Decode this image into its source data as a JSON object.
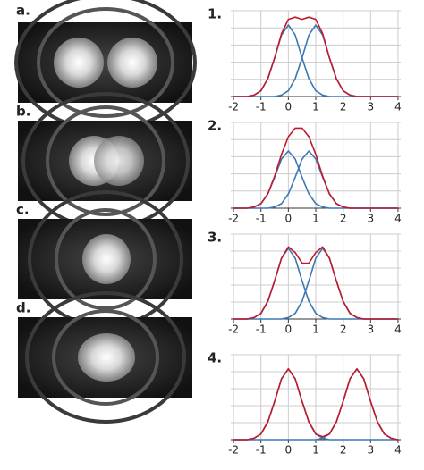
{
  "panels": [
    {
      "label": "a."
    },
    {
      "label": "b."
    },
    {
      "label": "c."
    },
    {
      "label": "d."
    }
  ],
  "chart_data": [
    {
      "type": "line",
      "title": "1.",
      "x": [
        -2,
        -1.75,
        -1.5,
        -1.25,
        -1,
        -0.75,
        -0.5,
        -0.25,
        0,
        0.25,
        0.5,
        0.75,
        1,
        1.25,
        1.5,
        1.75,
        2,
        2.25,
        2.5,
        2.75,
        3,
        3.25,
        3.5,
        3.75,
        4
      ],
      "xlim": [
        -2.1,
        4.1
      ],
      "xticks": [
        -2,
        -1,
        0,
        1,
        2,
        3,
        4
      ],
      "ylim": [
        0,
        1.2
      ],
      "yticks": [
        0,
        0.24,
        0.48,
        0.72,
        0.96,
        1.2
      ],
      "grid": true,
      "series": [
        {
          "color": "#3b78b5",
          "values": [
            0,
            0,
            0,
            0.02,
            0.08,
            0.25,
            0.54,
            0.86,
            1,
            0.86,
            0.54,
            0.25,
            0.08,
            0.02,
            0,
            0,
            0,
            0,
            0,
            0,
            0,
            0,
            0,
            0,
            0
          ]
        },
        {
          "color": "#3b78b5",
          "values": [
            0,
            0,
            0,
            0,
            0,
            0,
            0,
            0.02,
            0.08,
            0.25,
            0.54,
            0.86,
            1,
            0.86,
            0.54,
            0.25,
            0.08,
            0.02,
            0,
            0,
            0,
            0,
            0,
            0,
            0
          ]
        },
        {
          "color": "#c01a2c",
          "values": [
            0,
            0,
            0,
            0.02,
            0.08,
            0.25,
            0.54,
            0.88,
            1.08,
            1.11,
            1.08,
            1.11,
            1.08,
            0.88,
            0.54,
            0.25,
            0.08,
            0.02,
            0,
            0,
            0,
            0,
            0,
            0,
            0
          ]
        }
      ]
    },
    {
      "type": "line",
      "title": "2.",
      "x": [
        -2,
        -1.75,
        -1.5,
        -1.25,
        -1,
        -0.75,
        -0.5,
        -0.25,
        0,
        0.25,
        0.5,
        0.75,
        1,
        1.25,
        1.5,
        1.75,
        2,
        2.25,
        2.5,
        2.75,
        3,
        3.25,
        3.5,
        3.75,
        4
      ],
      "xlim": [
        -2.1,
        4.1
      ],
      "xticks": [
        -2,
        -1,
        0,
        1,
        2,
        3,
        4
      ],
      "ylim": [
        0,
        1.5
      ],
      "yticks": [
        0,
        0.3,
        0.6,
        0.9,
        1.2,
        1.5
      ],
      "grid": true,
      "series": [
        {
          "color": "#3b78b5",
          "values": [
            0,
            0,
            0,
            0.02,
            0.08,
            0.25,
            0.54,
            0.86,
            1,
            0.86,
            0.54,
            0.25,
            0.08,
            0.02,
            0,
            0,
            0,
            0,
            0,
            0,
            0,
            0,
            0,
            0,
            0
          ]
        },
        {
          "color": "#3b78b5",
          "values": [
            0,
            0,
            0,
            0,
            0,
            0,
            0.02,
            0.08,
            0.25,
            0.54,
            0.86,
            1,
            0.86,
            0.54,
            0.25,
            0.08,
            0.02,
            0,
            0,
            0,
            0,
            0,
            0,
            0,
            0
          ]
        },
        {
          "color": "#c01a2c",
          "values": [
            0,
            0,
            0,
            0.02,
            0.08,
            0.25,
            0.56,
            0.94,
            1.25,
            1.4,
            1.4,
            1.25,
            0.94,
            0.56,
            0.25,
            0.08,
            0.02,
            0,
            0,
            0,
            0,
            0,
            0,
            0,
            0
          ]
        }
      ]
    },
    {
      "type": "line",
      "title": "3.",
      "x": [
        -2,
        -1.75,
        -1.5,
        -1.25,
        -1,
        -0.75,
        -0.5,
        -0.25,
        0,
        0.25,
        0.5,
        0.75,
        1,
        1.25,
        1.5,
        1.75,
        2,
        2.25,
        2.5,
        2.75,
        3,
        3.25,
        3.5,
        3.75,
        4
      ],
      "xlim": [
        -2.1,
        4.1
      ],
      "xticks": [
        -2,
        -1,
        0,
        1,
        2,
        3,
        4
      ],
      "ylim": [
        0,
        1.2
      ],
      "yticks": [
        0,
        0.24,
        0.48,
        0.72,
        0.96,
        1.2
      ],
      "grid": true,
      "series": [
        {
          "color": "#3b78b5",
          "values": [
            0,
            0,
            0,
            0.02,
            0.08,
            0.25,
            0.54,
            0.86,
            1,
            0.86,
            0.54,
            0.25,
            0.08,
            0.02,
            0,
            0,
            0,
            0,
            0,
            0,
            0,
            0,
            0,
            0,
            0
          ]
        },
        {
          "color": "#3b78b5",
          "values": [
            0,
            0,
            0,
            0,
            0,
            0,
            0,
            0,
            0.02,
            0.08,
            0.25,
            0.54,
            0.86,
            1,
            0.86,
            0.54,
            0.25,
            0.08,
            0.02,
            0,
            0,
            0,
            0,
            0,
            0
          ]
        },
        {
          "color": "#c01a2c",
          "values": [
            0,
            0,
            0,
            0.02,
            0.08,
            0.25,
            0.54,
            0.86,
            1.02,
            0.94,
            0.79,
            0.79,
            0.94,
            1.02,
            0.86,
            0.54,
            0.25,
            0.08,
            0.02,
            0,
            0,
            0,
            0,
            0,
            0
          ]
        }
      ]
    },
    {
      "type": "line",
      "title": "4.",
      "x": [
        -2,
        -1.75,
        -1.5,
        -1.25,
        -1,
        -0.75,
        -0.5,
        -0.25,
        0,
        0.25,
        0.5,
        0.75,
        1,
        1.25,
        1.5,
        1.75,
        2,
        2.25,
        2.5,
        2.75,
        3,
        3.25,
        3.5,
        3.75,
        4
      ],
      "xlim": [
        -2.1,
        4.1
      ],
      "xticks": [
        -2,
        -1,
        0,
        1,
        2,
        3,
        4
      ],
      "ylim": [
        0,
        1.2
      ],
      "yticks": [
        0,
        0.24,
        0.48,
        0.72,
        0.96,
        1.2
      ],
      "grid": true,
      "series": [
        {
          "color": "#3b78b5",
          "values": [
            0,
            0,
            0,
            0.02,
            0.08,
            0.25,
            0.54,
            0.86,
            1,
            0.86,
            0.54,
            0.25,
            0.08,
            0.02,
            0,
            0,
            0,
            0,
            0,
            0,
            0,
            0,
            0,
            0,
            0
          ]
        },
        {
          "color": "#3b78b5",
          "values": [
            0,
            0,
            0,
            0,
            0,
            0,
            0,
            0,
            0,
            0,
            0,
            0,
            0,
            0.02,
            0.08,
            0.25,
            0.54,
            0.86,
            1,
            0.86,
            0.54,
            0.25,
            0.08,
            0.02,
            0
          ]
        },
        {
          "color": "#c01a2c",
          "values": [
            0,
            0,
            0,
            0.02,
            0.08,
            0.25,
            0.54,
            0.86,
            1,
            0.86,
            0.54,
            0.25,
            0.08,
            0.04,
            0.08,
            0.25,
            0.54,
            0.86,
            1,
            0.86,
            0.54,
            0.25,
            0.08,
            0.02,
            0
          ]
        }
      ]
    }
  ]
}
